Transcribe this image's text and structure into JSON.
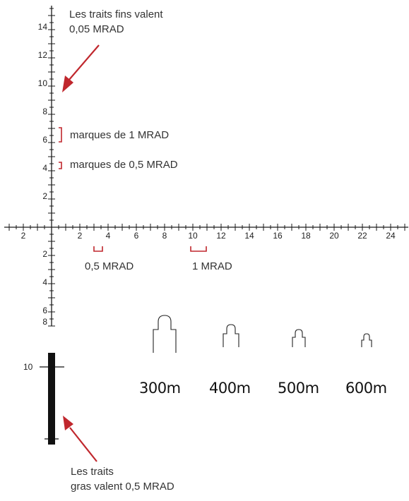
{
  "annotations": {
    "fine_lines": {
      "line1": "Les traits fins valent",
      "line2": "0,05 MRAD"
    },
    "marks_1": "marques de 1 MRAD",
    "marks_05": "marques de 0,5 MRAD",
    "h_05": "0,5 MRAD",
    "h_1": "1 MRAD",
    "bold_lines": {
      "line1": "Les traits",
      "line2": "gras valent 0,5 MRAD"
    }
  },
  "vertical_scale_labels": [
    "14",
    "12",
    "10",
    "8",
    "6",
    "4",
    "2",
    "2",
    "4",
    "6",
    "8"
  ],
  "horizontal_scale_labels": [
    "2",
    "2",
    "4",
    "6",
    "8",
    "10",
    "12",
    "14",
    "16",
    "18",
    "20",
    "22",
    "24"
  ],
  "post_label": "10",
  "distances": [
    "300m",
    "400m",
    "500m",
    "600m"
  ],
  "colors": {
    "line": "#1a1a1a",
    "accent": "#c0272d"
  }
}
